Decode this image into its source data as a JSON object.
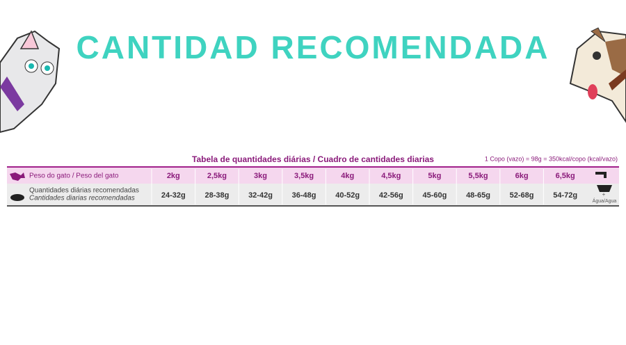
{
  "header": {
    "title": "CANTIDAD RECOMENDADA"
  },
  "table": {
    "title": "Tabela de quantidades diárias / Cuadro de cantidades diarias",
    "note": "1 Copo (vazo) = 98g = 350kcal/copo (kcal/vazo)",
    "weight_label": "Peso do gato / Peso del gato",
    "amount_label_pt": "Quantidades diárias recomendadas",
    "amount_label_es": "Cantidades diarias recomendadas",
    "weights": [
      "2kg",
      "2,5kg",
      "3kg",
      "3,5kg",
      "4kg",
      "4,5kg",
      "5kg",
      "5,5kg",
      "6kg",
      "6,5kg"
    ],
    "amounts": [
      "24-32g",
      "28-38g",
      "32-42g",
      "36-48g",
      "40-52g",
      "42-56g",
      "45-60g",
      "48-65g",
      "52-68g",
      "54-72g"
    ],
    "water_label": "Água/Agua"
  }
}
